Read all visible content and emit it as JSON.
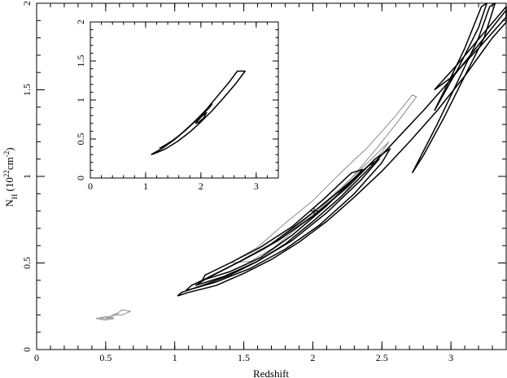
{
  "chart_data": [
    {
      "type": "contour",
      "xlabel": "Redshift",
      "ylabel": "N_H (10^22 cm^-2)",
      "ylabel_parts": {
        "main": "N",
        "sub": "H",
        "open": " (10",
        "exp1": "22",
        "unit": "cm",
        "exp2": "-2",
        "close": ")"
      },
      "xlim": [
        0,
        3.4
      ],
      "ylim": [
        0,
        2
      ],
      "x_ticks": [
        "0",
        "0.5",
        "1",
        "1.5",
        "2",
        "2.5",
        "3"
      ],
      "y_ticks": [
        "0",
        "0.5",
        "1",
        "1.5",
        "2"
      ],
      "best_fit_marker": {
        "x": 2.01,
        "y": 0.8
      },
      "contours_dark": [
        {
          "name": "outer",
          "points": [
            [
              1.02,
              0.31
            ],
            [
              1.1,
              0.33
            ],
            [
              1.3,
              0.37
            ],
            [
              1.5,
              0.44
            ],
            [
              1.7,
              0.52
            ],
            [
              1.9,
              0.62
            ],
            [
              2.1,
              0.74
            ],
            [
              2.3,
              0.88
            ],
            [
              2.5,
              1.03
            ],
            [
              2.7,
              1.2
            ],
            [
              2.9,
              1.38
            ],
            [
              3.1,
              1.58
            ],
            [
              3.3,
              1.8
            ],
            [
              3.4,
              1.89
            ],
            [
              3.4,
              1.96
            ],
            [
              3.2,
              1.76
            ],
            [
              3.0,
              1.56
            ],
            [
              2.8,
              1.38
            ],
            [
              2.6,
              1.21
            ],
            [
              2.4,
              1.04
            ],
            [
              2.2,
              0.88
            ],
            [
              2.0,
              0.74
            ],
            [
              1.8,
              0.61
            ],
            [
              1.6,
              0.51
            ],
            [
              1.4,
              0.43
            ],
            [
              1.2,
              0.37
            ],
            [
              1.05,
              0.33
            ],
            [
              1.02,
              0.31
            ]
          ]
        },
        {
          "name": "upper-branch-outer",
          "points": [
            [
              2.72,
              1.02
            ],
            [
              2.9,
              1.3
            ],
            [
              3.05,
              1.55
            ],
            [
              3.2,
              1.8
            ],
            [
              3.28,
              1.98
            ],
            [
              3.32,
              2.0
            ],
            [
              3.24,
              1.8
            ],
            [
              3.1,
              1.58
            ],
            [
              2.95,
              1.34
            ],
            [
              2.8,
              1.12
            ],
            [
              2.72,
              1.02
            ]
          ]
        },
        {
          "name": "upper-branch-inner",
          "points": [
            [
              2.88,
              1.38
            ],
            [
              3.05,
              1.62
            ],
            [
              3.2,
              1.86
            ],
            [
              3.26,
              2.0
            ],
            [
              3.22,
              1.98
            ],
            [
              3.1,
              1.74
            ],
            [
              2.98,
              1.54
            ],
            [
              2.88,
              1.38
            ]
          ]
        },
        {
          "name": "right-branch",
          "points": [
            [
              2.88,
              1.5
            ],
            [
              3.05,
              1.65
            ],
            [
              3.25,
              1.84
            ],
            [
              3.4,
              1.98
            ],
            [
              3.4,
              1.92
            ],
            [
              3.2,
              1.74
            ],
            [
              3.0,
              1.57
            ],
            [
              2.88,
              1.5
            ]
          ]
        },
        {
          "name": "inner-1",
          "points": [
            [
              1.08,
              0.34
            ],
            [
              1.3,
              0.39
            ],
            [
              1.55,
              0.47
            ],
            [
              1.8,
              0.58
            ],
            [
              2.05,
              0.72
            ],
            [
              2.3,
              0.9
            ],
            [
              2.5,
              1.08
            ],
            [
              2.56,
              1.16
            ],
            [
              2.45,
              1.1
            ],
            [
              2.25,
              0.94
            ],
            [
              2.0,
              0.77
            ],
            [
              1.75,
              0.63
            ],
            [
              1.5,
              0.52
            ],
            [
              1.28,
              0.43
            ],
            [
              1.12,
              0.37
            ],
            [
              1.08,
              0.34
            ]
          ]
        },
        {
          "name": "inner-2",
          "points": [
            [
              1.15,
              0.37
            ],
            [
              1.35,
              0.42
            ],
            [
              1.6,
              0.51
            ],
            [
              1.85,
              0.63
            ],
            [
              2.1,
              0.79
            ],
            [
              2.35,
              0.98
            ],
            [
              2.48,
              1.1
            ],
            [
              2.4,
              1.06
            ],
            [
              2.2,
              0.92
            ],
            [
              1.95,
              0.76
            ],
            [
              1.7,
              0.61
            ],
            [
              1.45,
              0.5
            ],
            [
              1.25,
              0.42
            ],
            [
              1.15,
              0.37
            ]
          ]
        },
        {
          "name": "inner-3",
          "points": [
            [
              1.2,
              0.4
            ],
            [
              1.4,
              0.45
            ],
            [
              1.62,
              0.53
            ],
            [
              1.85,
              0.66
            ],
            [
              2.1,
              0.83
            ],
            [
              2.3,
              0.99
            ],
            [
              2.36,
              1.04
            ],
            [
              2.28,
              1.02
            ],
            [
              2.08,
              0.87
            ],
            [
              1.85,
              0.71
            ],
            [
              1.62,
              0.59
            ],
            [
              1.4,
              0.5
            ],
            [
              1.22,
              0.43
            ],
            [
              1.2,
              0.4
            ]
          ]
        }
      ],
      "contours_grey": [
        {
          "name": "grey-outer",
          "points": [
            [
              1.4,
              0.5
            ],
            [
              1.6,
              0.59
            ],
            [
              1.8,
              0.73
            ],
            [
              2.0,
              0.86
            ],
            [
              2.2,
              1.02
            ],
            [
              2.4,
              1.17
            ],
            [
              2.6,
              1.35
            ],
            [
              2.72,
              1.47
            ],
            [
              2.75,
              1.46
            ],
            [
              2.62,
              1.32
            ],
            [
              2.45,
              1.15
            ],
            [
              2.28,
              0.99
            ],
            [
              2.1,
              0.85
            ],
            [
              1.9,
              0.71
            ],
            [
              1.72,
              0.59
            ],
            [
              1.55,
              0.51
            ],
            [
              1.4,
              0.5
            ]
          ]
        },
        {
          "name": "grey-band",
          "points": [
            [
              1.3,
              0.44
            ],
            [
              1.6,
              0.56
            ],
            [
              1.9,
              0.72
            ],
            [
              2.2,
              0.93
            ],
            [
              2.45,
              1.12
            ],
            [
              2.55,
              1.2
            ],
            [
              2.5,
              1.14
            ],
            [
              2.25,
              0.93
            ],
            [
              1.95,
              0.74
            ],
            [
              1.65,
              0.58
            ],
            [
              1.4,
              0.48
            ],
            [
              1.3,
              0.44
            ]
          ]
        },
        {
          "name": "grey-small-1",
          "points": [
            [
              0.43,
              0.18
            ],
            [
              0.5,
              0.19
            ],
            [
              0.56,
              0.18
            ],
            [
              0.5,
              0.17
            ],
            [
              0.43,
              0.18
            ]
          ]
        },
        {
          "name": "grey-small-2",
          "points": [
            [
              0.57,
              0.2
            ],
            [
              0.62,
              0.23
            ],
            [
              0.68,
              0.22
            ],
            [
              0.62,
              0.2
            ],
            [
              0.57,
              0.2
            ]
          ]
        },
        {
          "name": "grey-small-3",
          "points": [
            [
              0.46,
              0.18
            ],
            [
              0.52,
              0.18
            ],
            [
              0.55,
              0.19
            ],
            [
              0.59,
              0.21
            ],
            [
              0.55,
              0.2
            ],
            [
              0.5,
              0.18
            ],
            [
              0.46,
              0.18
            ]
          ]
        }
      ]
    },
    {
      "type": "contour",
      "xlim": [
        0,
        3.4
      ],
      "ylim": [
        0,
        2
      ],
      "x_ticks": [
        "0",
        "1",
        "2",
        "3"
      ],
      "y_ticks": [
        "0",
        "0.5",
        "1",
        "1.5",
        "2"
      ],
      "contours_dark": [
        {
          "name": "inset-outer",
          "points": [
            [
              1.1,
              0.3
            ],
            [
              1.3,
              0.38
            ],
            [
              1.5,
              0.48
            ],
            [
              1.7,
              0.6
            ],
            [
              1.9,
              0.73
            ],
            [
              2.1,
              0.88
            ],
            [
              2.3,
              1.05
            ],
            [
              2.5,
              1.22
            ],
            [
              2.66,
              1.37
            ],
            [
              2.8,
              1.37
            ],
            [
              2.62,
              1.2
            ],
            [
              2.4,
              1.02
            ],
            [
              2.2,
              0.86
            ],
            [
              2.0,
              0.72
            ],
            [
              1.8,
              0.59
            ],
            [
              1.58,
              0.47
            ],
            [
              1.35,
              0.37
            ],
            [
              1.15,
              0.31
            ],
            [
              1.1,
              0.3
            ]
          ]
        },
        {
          "name": "inset-inner",
          "points": [
            [
              1.25,
              0.38
            ],
            [
              1.45,
              0.46
            ],
            [
              1.65,
              0.57
            ],
            [
              1.85,
              0.7
            ],
            [
              2.05,
              0.84
            ],
            [
              2.2,
              0.95
            ],
            [
              2.15,
              0.9
            ],
            [
              1.95,
              0.76
            ],
            [
              1.75,
              0.63
            ],
            [
              1.55,
              0.51
            ],
            [
              1.35,
              0.42
            ],
            [
              1.25,
              0.38
            ]
          ]
        },
        {
          "name": "inset-core",
          "points": [
            [
              1.9,
              0.7
            ],
            [
              2.0,
              0.78
            ],
            [
              2.1,
              0.84
            ],
            [
              2.05,
              0.77
            ],
            [
              1.95,
              0.71
            ],
            [
              1.9,
              0.7
            ]
          ]
        }
      ]
    }
  ]
}
